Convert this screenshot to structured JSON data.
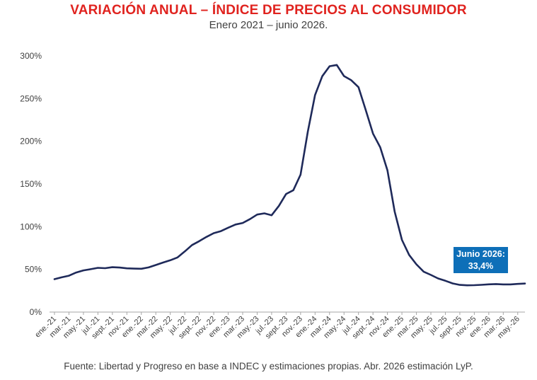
{
  "header": {
    "title": "VARIACIÓN ANUAL – ÍNDICE DE PRECIOS AL CONSUMIDOR",
    "subtitle": "Enero 2021 – junio 2026."
  },
  "footer": {
    "source": "Fuente: Libertad y Progreso en base a INDEC y estimaciones propias. Abr. 2026 estimación LyP."
  },
  "colors": {
    "title": "#e0231f",
    "line": "#1f2a5a",
    "callout": "#0e6fb8",
    "axis": "#a6a6a6"
  },
  "chart_data": {
    "type": "line",
    "title": "VARIACIÓN ANUAL – ÍNDICE DE PRECIOS AL CONSUMIDOR",
    "subtitle": "Enero 2021 – junio 2026.",
    "xlabel": "",
    "ylabel": "",
    "ylim": [
      0,
      300
    ],
    "yticks": [
      0,
      50,
      100,
      150,
      200,
      250,
      300
    ],
    "ytick_labels": [
      "0%",
      "50%",
      "100%",
      "150%",
      "200%",
      "250%",
      "300%"
    ],
    "grid": false,
    "legend": "none",
    "x_tick_labels": [
      "ene.-21",
      "mar.-21",
      "may.-21",
      "jul.-21",
      "sept.-21",
      "nov.-21",
      "ene.-22",
      "mar.-22",
      "may.-22",
      "jul.-22",
      "sept.-22",
      "nov.-22",
      "ene.-23",
      "mar.-23",
      "may.-23",
      "jul.-23",
      "sept.-23",
      "nov.-23",
      "ene.-24",
      "mar.-24",
      "may.-24",
      "jul.-24",
      "sept.-24",
      "nov.-24",
      "ene.-25",
      "mar.-25",
      "may.-25",
      "jul.-25",
      "sept.-25",
      "nov.-25",
      "ene.-26",
      "mar.-26",
      "may.-26"
    ],
    "series": [
      {
        "values": [
          38.5,
          40.7,
          42.6,
          46.3,
          48.8,
          50.2,
          51.8,
          51.4,
          52.5,
          52.1,
          51.2,
          50.9,
          50.7,
          52.3,
          55.1,
          58.0,
          60.7,
          64.0,
          71.0,
          78.5,
          83.0,
          88.0,
          92.4,
          94.8,
          98.8,
          102.5,
          104.3,
          108.8,
          114.2,
          115.6,
          113.4,
          124.4,
          138.3,
          142.7,
          160.9,
          211.4,
          254.2,
          276.2,
          287.9,
          289.4,
          276.4,
          271.5,
          263.4,
          236.7,
          209.0,
          193.0,
          166.0,
          117.8,
          84.5,
          66.9,
          55.9,
          47.3,
          43.5,
          39.4,
          36.6,
          33.6,
          31.8,
          31.3,
          31.5,
          31.9,
          32.5,
          32.8,
          32.4,
          32.4,
          33.0,
          33.4
        ]
      }
    ],
    "annotations": [
      {
        "label_line1": "Junio 2026:",
        "label_line2": "33,4%",
        "value": 33.4
      }
    ]
  }
}
